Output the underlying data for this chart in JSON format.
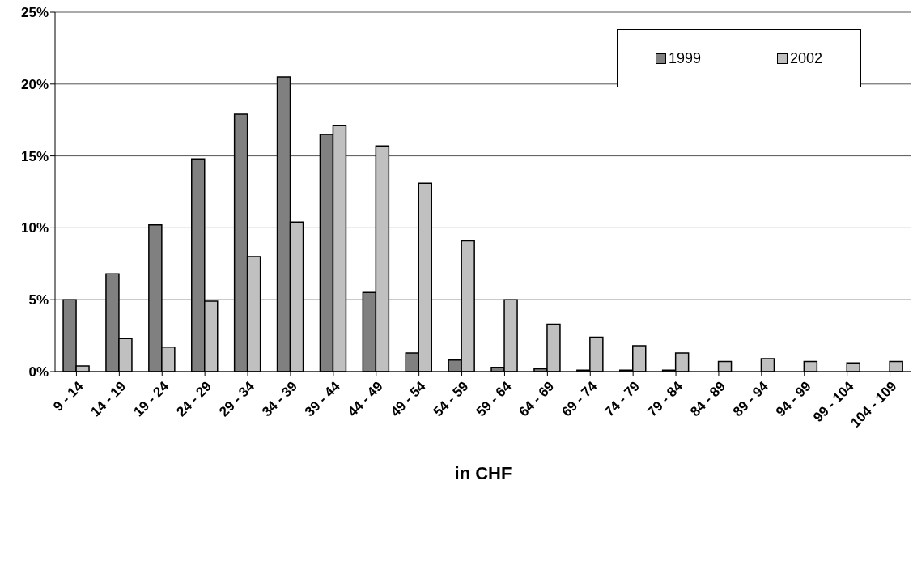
{
  "chart_data": {
    "type": "bar",
    "xlabel": "in CHF",
    "categories": [
      "9 - 14",
      "14 - 19",
      "19 - 24",
      "24 - 29",
      "29 - 34",
      "34 - 39",
      "39 - 44",
      "44 - 49",
      "49 - 54",
      "54 - 59",
      "59 - 64",
      "64 - 69",
      "69 - 74",
      "74 - 79",
      "79 - 84",
      "84 - 89",
      "89 - 94",
      "94 - 99",
      "99 - 104",
      "104 - 109"
    ],
    "series": [
      {
        "name": "1999",
        "color": "#808080",
        "values": [
          5.0,
          6.8,
          10.2,
          14.8,
          17.9,
          20.5,
          16.5,
          5.5,
          1.3,
          0.8,
          0.3,
          0.2,
          0.1,
          0.1,
          0.1,
          0,
          0,
          0,
          0,
          0
        ]
      },
      {
        "name": "2002",
        "color": "#c0c0c0",
        "values": [
          0.4,
          2.3,
          1.7,
          4.9,
          8.0,
          10.4,
          17.1,
          15.7,
          13.1,
          9.1,
          5.0,
          3.3,
          2.4,
          1.8,
          1.3,
          0.7,
          0.9,
          0.7,
          0.6,
          0.7
        ]
      }
    ],
    "ylim": [
      0,
      25
    ],
    "yticks": [
      {
        "value": 0,
        "label": "0%"
      },
      {
        "value": 5,
        "label": "5%"
      },
      {
        "value": 10,
        "label": "10%"
      },
      {
        "value": 15,
        "label": "15%"
      },
      {
        "value": 20,
        "label": "20%"
      },
      {
        "value": 25,
        "label": "25%"
      }
    ],
    "grid": "y",
    "legend": "top right"
  }
}
